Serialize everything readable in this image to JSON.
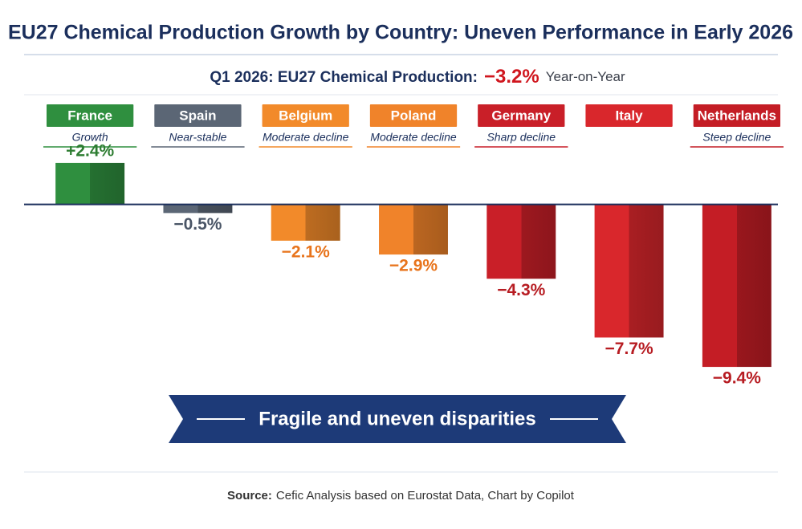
{
  "chart_data": {
    "type": "bar",
    "title": "EU27 Chemical Production Growth by Country: Uneven Performance in Early 2026",
    "subtitle": "Q1 2026: EU27 Chemical Production:",
    "subtitle_value": "−3.2%",
    "subtitle_suffix": "Year-on-Year",
    "categories": [
      "France",
      "Spain",
      "Belgium",
      "Poland",
      "Germany",
      "Italy",
      "Netherlands"
    ],
    "values": [
      2.4,
      -0.5,
      -2.1,
      -2.9,
      -4.3,
      -7.7,
      -9.4
    ],
    "value_labels": [
      "+2.4%",
      "−0.5%",
      "−2.1%",
      "−2.9%",
      "−4.3%",
      "−7.7%",
      "−9.4%"
    ],
    "descriptors": [
      "Growth",
      "Near-stable",
      "Moderate decline",
      "Moderate decline",
      "Sharp decline",
      null,
      "Steep decline"
    ],
    "colors": [
      "#2f8f3f",
      "#5b6675",
      "#f28a2a",
      "#f0832a",
      "#c91f28",
      "#d9272c",
      "#c41d25"
    ],
    "label_colors": [
      "#2e7d32",
      "#4a5566",
      "#e8741c",
      "#e8741c",
      "#b71c22",
      "#b71c22",
      "#b71c22"
    ],
    "ylim": [
      -10,
      3
    ],
    "banner": "Fragile and uneven disparities",
    "source_label": "Source:",
    "source": "Cefic Analysis based on Eurostat Data, Chart by Copilot"
  }
}
